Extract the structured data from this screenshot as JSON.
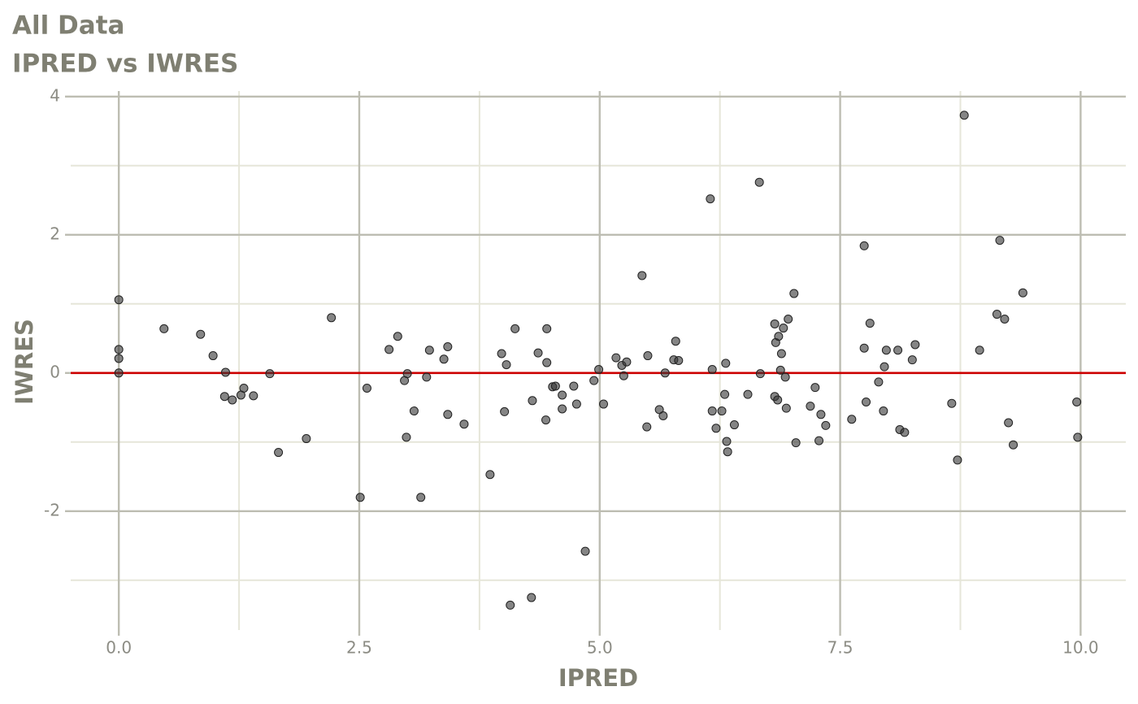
{
  "chart_data": {
    "type": "scatter",
    "title": "All Data",
    "subtitle": "IPRED vs IWRES",
    "x_label": "IPRED",
    "y_label": "IWRES",
    "color": "#333333",
    "grid": true,
    "xlim": [
      -0.5,
      10.47
    ],
    "ylim": [
      -3.72,
      4.08
    ],
    "xticks": [
      {
        "value": 0,
        "label": "0.0"
      },
      {
        "value": 2.5,
        "label": "2.5"
      },
      {
        "value": 5,
        "label": "5.0"
      },
      {
        "value": 7.5,
        "label": "7.5"
      },
      {
        "value": 10,
        "label": "10.0"
      }
    ],
    "yticks": [
      4,
      2,
      0,
      -2
    ],
    "x_minor_grid": [
      1.25,
      3.75,
      6.25,
      8.75
    ],
    "y_minor_grid": [
      3,
      1,
      -1,
      -3
    ],
    "hline": {
      "y": 0,
      "color": "#cc0000"
    },
    "x": [
      0,
      0,
      0,
      0,
      0.47,
      0.85,
      0.98,
      1.11,
      1.1,
      1.18,
      1.27,
      1.3,
      1.4,
      1.57,
      1.66,
      1.95,
      2.21,
      2.51,
      2.58,
      2.81,
      2.9,
      2.97,
      3.0,
      2.99,
      3.07,
      3.14,
      3.2,
      3.23,
      3.38,
      3.42,
      3.42,
      3.59,
      3.86,
      3.98,
      4.01,
      4.03,
      4.07,
      4.12,
      4.29,
      4.3,
      4.36,
      4.45,
      4.45,
      4.44,
      4.51,
      4.54,
      4.61,
      4.61,
      4.73,
      4.76,
      4.85,
      4.94,
      4.99,
      5.04,
      5.17,
      5.23,
      5.25,
      5.28,
      5.44,
      5.49,
      5.5,
      5.62,
      5.66,
      5.68,
      5.77,
      5.79,
      5.82,
      6.15,
      6.17,
      6.17,
      6.21,
      6.27,
      6.3,
      6.31,
      6.32,
      6.33,
      6.4,
      6.54,
      6.66,
      6.67,
      6.82,
      6.83,
      6.82,
      6.85,
      6.86,
      6.88,
      6.89,
      6.91,
      6.93,
      6.94,
      6.96,
      7.02,
      7.04,
      7.19,
      7.24,
      7.28,
      7.3,
      7.35,
      7.62,
      7.75,
      7.75,
      7.77,
      7.81,
      7.9,
      7.95,
      7.96,
      7.98,
      8.1,
      8.12,
      8.17,
      8.25,
      8.28,
      8.66,
      8.72,
      8.79,
      8.95,
      9.13,
      9.16,
      9.21,
      9.25,
      9.3,
      9.4,
      9.96,
      9.97
    ],
    "values": [
      1.06,
      0.34,
      0.21,
      0,
      0.64,
      0.56,
      0.25,
      0.01,
      -0.34,
      -0.39,
      -0.32,
      -0.22,
      -0.33,
      -0.01,
      -1.15,
      -0.95,
      0.8,
      -1.8,
      -0.22,
      0.34,
      0.53,
      -0.11,
      -0.01,
      -0.93,
      -0.55,
      -1.8,
      -0.06,
      0.33,
      0.2,
      0.38,
      -0.6,
      -0.74,
      -1.47,
      0.28,
      -0.56,
      0.12,
      -3.36,
      0.64,
      -3.25,
      -0.4,
      0.29,
      0.64,
      0.15,
      -0.68,
      -0.2,
      -0.19,
      -0.32,
      -0.52,
      -0.19,
      -0.45,
      -2.58,
      -0.11,
      0.05,
      -0.45,
      0.22,
      0.11,
      -0.04,
      0.16,
      1.41,
      -0.78,
      0.25,
      -0.53,
      -0.62,
      0.0,
      0.19,
      0.46,
      0.18,
      2.52,
      0.05,
      -0.55,
      -0.8,
      -0.55,
      -0.31,
      0.14,
      -0.99,
      -1.14,
      -0.75,
      -0.31,
      2.76,
      -0.01,
      0.71,
      0.44,
      -0.34,
      -0.39,
      0.53,
      0.04,
      0.28,
      0.65,
      -0.06,
      -0.51,
      0.78,
      1.15,
      -1.01,
      -0.48,
      -0.21,
      -0.98,
      -0.6,
      -0.76,
      -0.67,
      1.84,
      0.36,
      -0.42,
      0.72,
      -0.13,
      -0.55,
      0.09,
      0.33,
      0.33,
      -0.82,
      -0.86,
      0.19,
      0.41,
      -0.44,
      -1.26,
      3.73,
      0.33,
      0.85,
      1.92,
      0.78,
      -0.72,
      -1.04,
      1.16,
      -0.42,
      -0.93
    ]
  }
}
